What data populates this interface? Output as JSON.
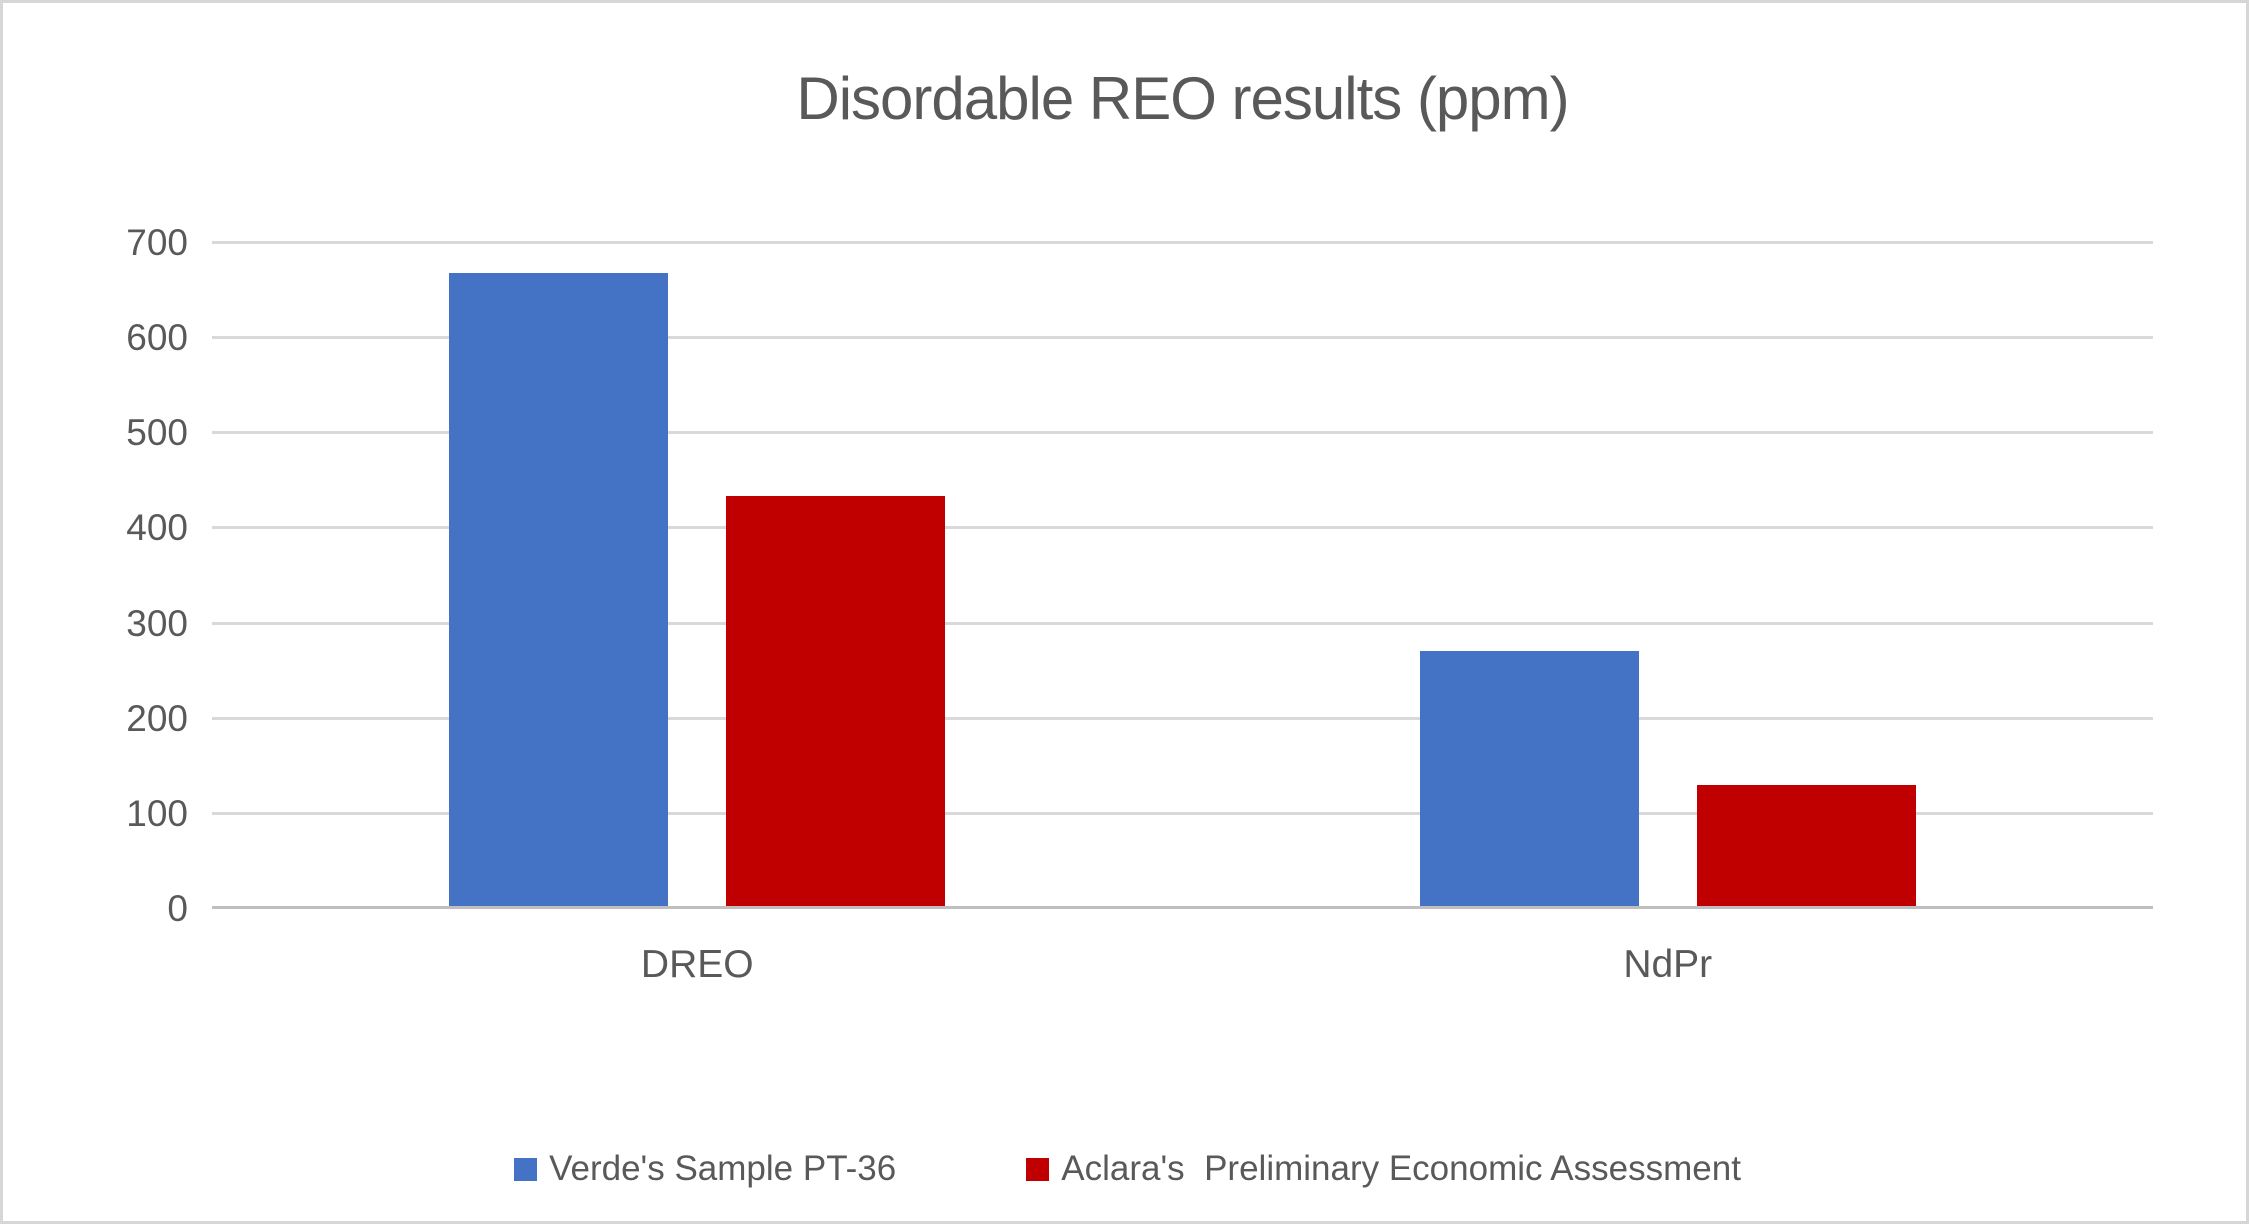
{
  "window": {
    "background_color": "#ffffff",
    "border_color": "#d6d6d6"
  },
  "chart_data": {
    "type": "bar",
    "title": "Disordable REO results (ppm)",
    "categories": [
      "DREO",
      "NdPr"
    ],
    "series": [
      {
        "name": "Verde's Sample PT-36",
        "color": "#4472C4",
        "values": [
          667,
          270
        ]
      },
      {
        "name": "Aclara's  Preliminary Economic Assessment",
        "color": "#C00000",
        "values": [
          433,
          129
        ]
      }
    ],
    "xlabel": "",
    "ylabel": "",
    "ylim": [
      0,
      700
    ],
    "yticks": [
      0,
      100,
      200,
      300,
      400,
      500,
      600,
      700
    ],
    "grid": "horizontal",
    "gridline_color": "#D9D9D9",
    "axis_line_color": "#BFBFBF",
    "text_color": "#595959",
    "legend_position": "bottom"
  }
}
